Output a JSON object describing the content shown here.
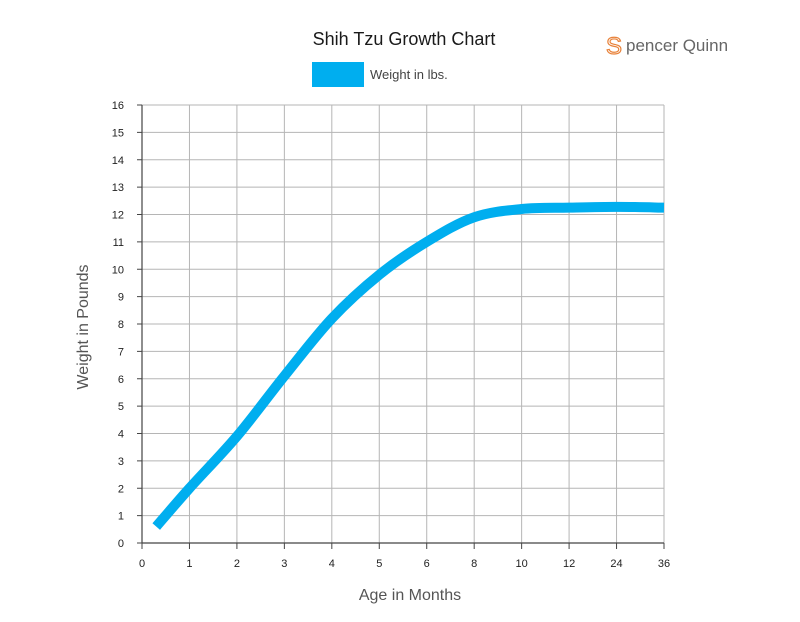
{
  "chart_data": {
    "type": "line",
    "title": "Shih Tzu Growth Chart",
    "xlabel": "Age in Months",
    "ylabel": "Weight in Pounds",
    "categories": [
      "0",
      "1",
      "2",
      "3",
      "4",
      "5",
      "6",
      "8",
      "10",
      "12",
      "24",
      "36"
    ],
    "ylim": [
      0,
      16
    ],
    "yticks": [
      "0",
      "1",
      "2",
      "3",
      "4",
      "5",
      "6",
      "7",
      "8",
      "9",
      "10",
      "11",
      "12",
      "13",
      "14",
      "15",
      "16"
    ],
    "grid": true,
    "legend": "top-center",
    "series": [
      {
        "name": "Weight in lbs.",
        "color": "#00aeef",
        "x": [
          "0.3",
          "1",
          "2",
          "3",
          "4",
          "5",
          "6",
          "8",
          "10",
          "12",
          "24",
          "36"
        ],
        "values": [
          0.6,
          2.0,
          3.9,
          6.1,
          8.2,
          9.8,
          11.0,
          11.9,
          12.2,
          12.25,
          12.28,
          12.25
        ]
      }
    ]
  },
  "brand": {
    "initial": "S",
    "rest": "pencer Quinn",
    "color": "#e8823a"
  }
}
